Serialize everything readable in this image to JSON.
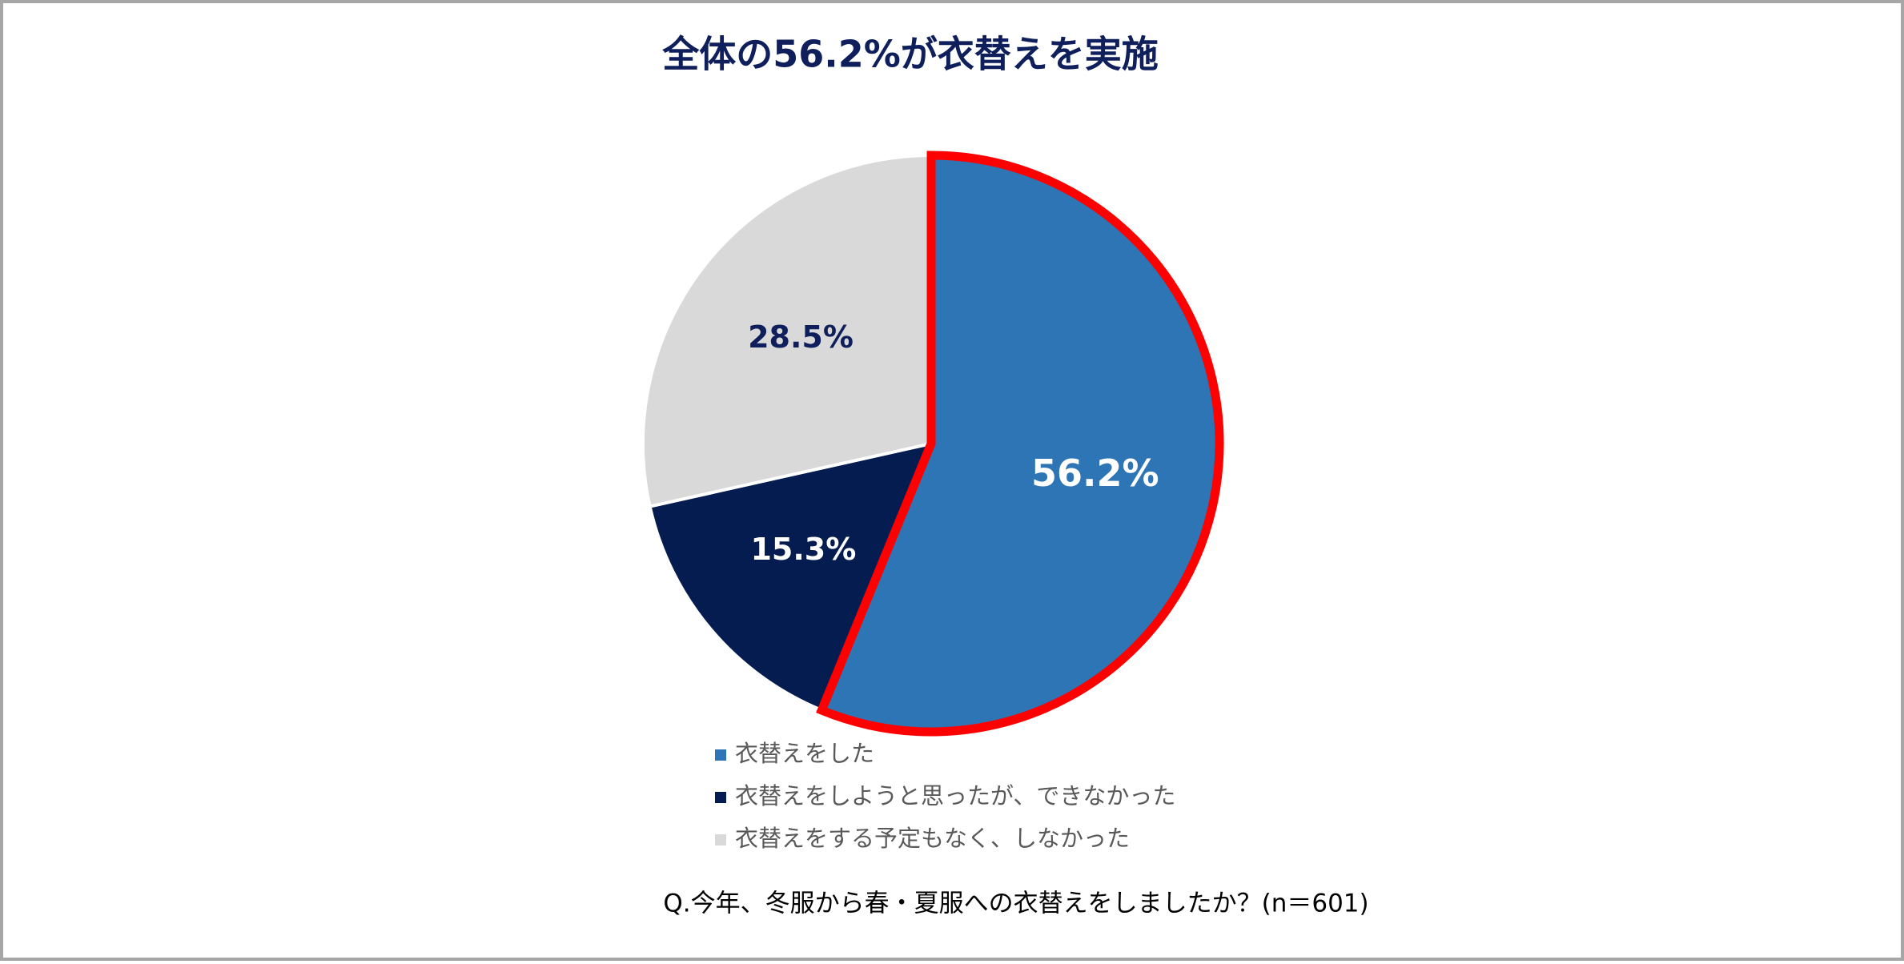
{
  "chart_data": {
    "type": "pie",
    "title": "全体の56.2%が衣替えを実施",
    "categories": [
      "衣替えをした",
      "衣替えをしようと思ったが、できなかった",
      "衣替えをする予定もなく、しなかった"
    ],
    "values": [
      56.2,
      15.3,
      28.5
    ],
    "value_labels": [
      "56.2%",
      "15.3%",
      "28.5%"
    ],
    "colors": [
      "#2e75b6",
      "#041c4f",
      "#d9d9d9"
    ],
    "highlight_index": 0,
    "highlight_color": "#ff0000",
    "legend": "bottom",
    "note": "Q.今年、冬服から春・夏服への衣替えをしましたか？(n＝601)"
  }
}
